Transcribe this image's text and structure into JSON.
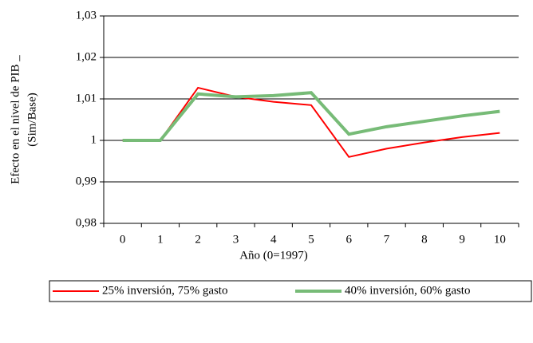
{
  "chart_data": {
    "type": "line",
    "y_label": [
      "Efecto en el nivel de PIB _",
      "(Sim/Base)"
    ],
    "x_label": "Año (0=1997)",
    "categories": [
      "0",
      "1",
      "2",
      "3",
      "4",
      "5",
      "6",
      "7",
      "8",
      "9",
      "10"
    ],
    "series": [
      {
        "name": "25% inversión, 75% gasto",
        "color": "#ff0000",
        "width": 2,
        "values": [
          1.0,
          1.0,
          1.0127,
          1.0105,
          1.0093,
          1.0085,
          0.996,
          0.998,
          0.9995,
          1.0008,
          1.0018
        ]
      },
      {
        "name": "40% inversión, 60% gasto",
        "color": "#77bb77",
        "width": 4,
        "values": [
          1.0,
          1.0,
          1.0112,
          1.0105,
          1.0108,
          1.0115,
          1.0015,
          1.0033,
          1.0046,
          1.0059,
          1.007
        ]
      }
    ],
    "ylim": [
      0.98,
      1.03
    ],
    "yticks": [
      {
        "value": 0.98,
        "label": "0,98"
      },
      {
        "value": 0.99,
        "label": "0,99"
      },
      1,
      {
        "value": 1.01,
        "label": "1,01"
      },
      {
        "value": 1.02,
        "label": "1,02"
      },
      {
        "value": 1.03,
        "label": "1,03"
      }
    ],
    "grid": true
  }
}
